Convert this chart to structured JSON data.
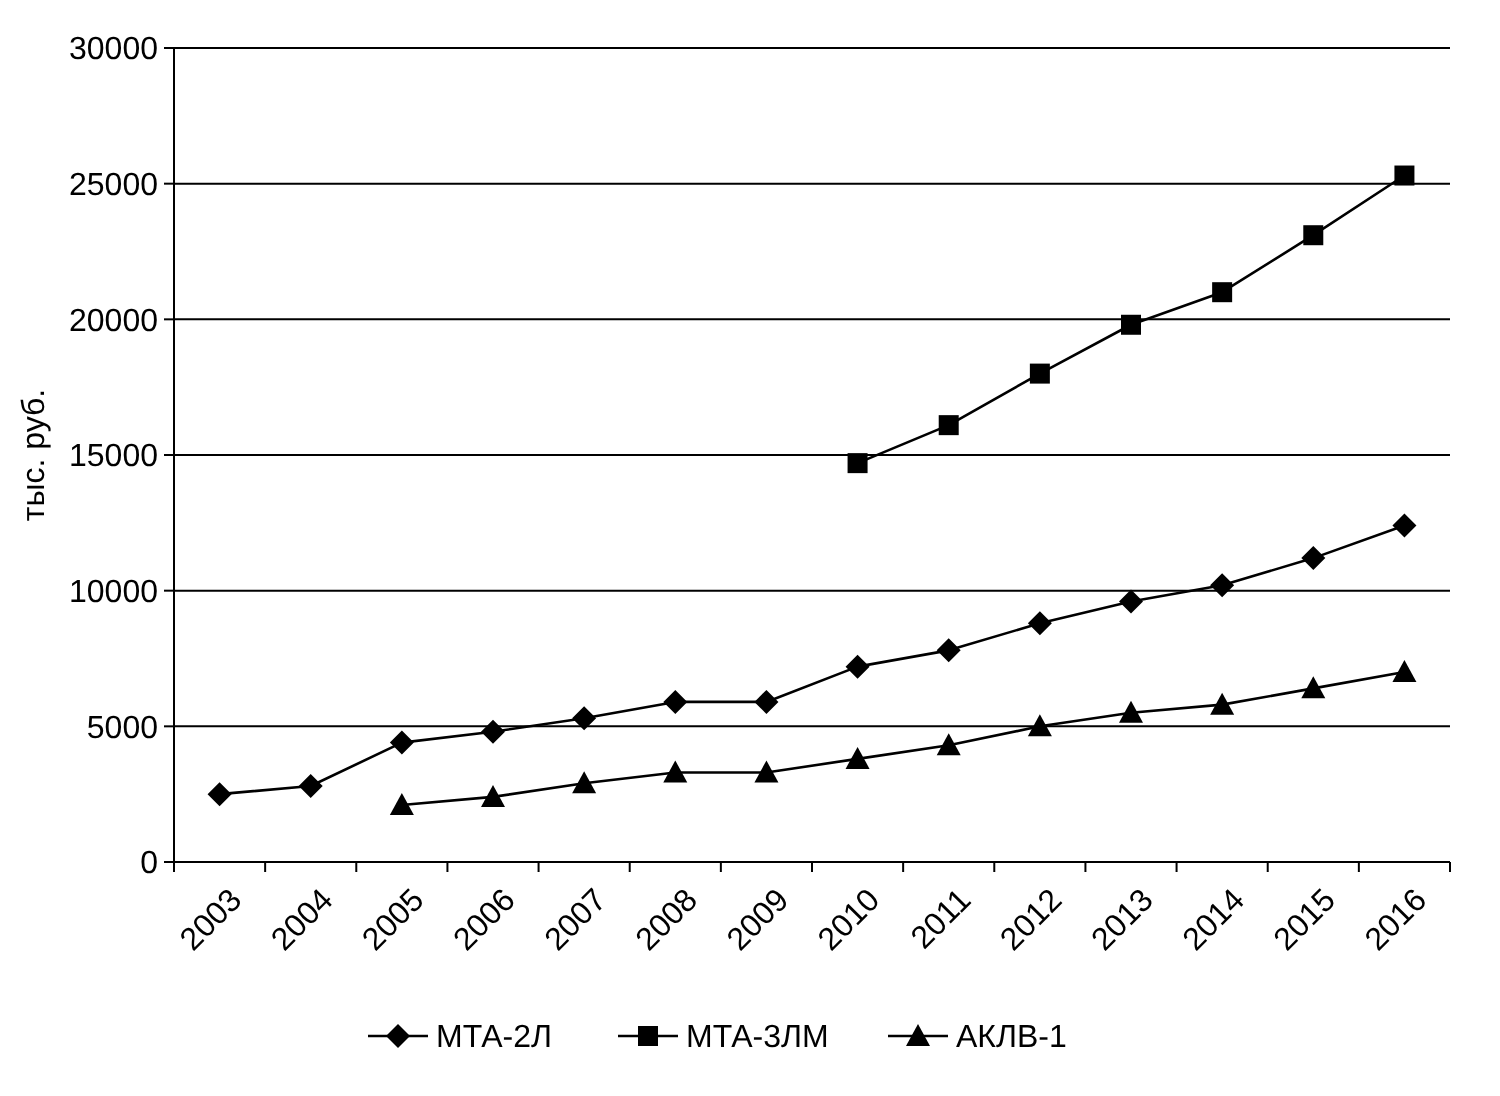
{
  "chart_data": {
    "type": "line",
    "ylabel": "тыс. руб.",
    "categories": [
      "2003",
      "2004",
      "2005",
      "2006",
      "2007",
      "2008",
      "2009",
      "2010",
      "2011",
      "2012",
      "2013",
      "2014",
      "2015",
      "2016"
    ],
    "series": [
      {
        "name": "МТА-2Л",
        "color": "#000000",
        "marker": "diamond",
        "values": [
          2500,
          2800,
          4400,
          4800,
          5300,
          5900,
          5900,
          7200,
          7800,
          8800,
          9600,
          10200,
          11200,
          12400
        ]
      },
      {
        "name": "МТА-3ЛМ",
        "color": "#000000",
        "marker": "square",
        "values": [
          null,
          null,
          null,
          null,
          null,
          null,
          null,
          14700,
          16100,
          18000,
          19800,
          21000,
          23100,
          25300
        ]
      },
      {
        "name": "АКЛВ-1",
        "color": "#000000",
        "marker": "triangle",
        "values": [
          null,
          null,
          2100,
          2400,
          2900,
          3300,
          3300,
          3800,
          4300,
          5000,
          5500,
          5800,
          6400,
          7000
        ]
      }
    ],
    "ylim": [
      0,
      30000
    ],
    "yticks": [
      0,
      5000,
      10000,
      15000,
      20000,
      25000,
      30000
    ],
    "grid": "y",
    "legend": "bottom",
    "line_style": "solid"
  }
}
